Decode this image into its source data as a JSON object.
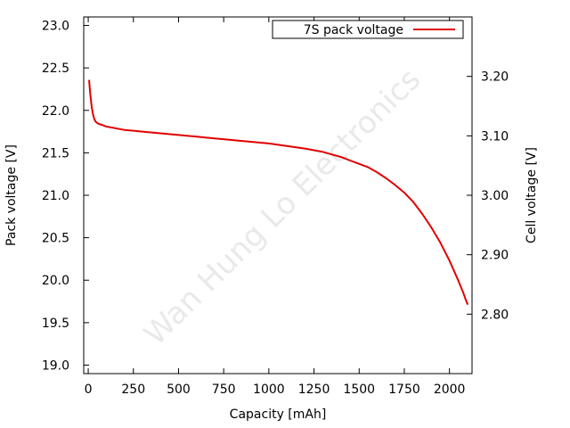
{
  "chart_data": {
    "type": "line",
    "title": "",
    "xlabel": "Capacity [mAh]",
    "ylabel": "Pack voltage [V]",
    "y2label": "Cell voltage [V]",
    "xlim": [
      -25,
      2125
    ],
    "ylim": [
      18.9,
      23.1
    ],
    "x_ticks": [
      0,
      250,
      500,
      750,
      1000,
      1250,
      1500,
      1750,
      2000
    ],
    "y_ticks": [
      19.0,
      19.5,
      20.0,
      20.5,
      21.0,
      21.5,
      22.0,
      22.5,
      23.0
    ],
    "y2_ticks": [
      2.8,
      2.9,
      3.0,
      3.1,
      3.2
    ],
    "y2_scale_cells": 7,
    "grid": false,
    "legend_position": "top-right",
    "watermark": "Wan Hung Lo Electronics",
    "series": [
      {
        "name": "7S pack voltage",
        "color": "#e00000",
        "x": [
          5,
          10,
          15,
          20,
          25,
          30,
          35,
          40,
          50,
          60,
          75,
          100,
          150,
          200,
          250,
          300,
          400,
          500,
          600,
          700,
          800,
          900,
          1000,
          1100,
          1200,
          1250,
          1300,
          1350,
          1400,
          1450,
          1500,
          1550,
          1600,
          1650,
          1700,
          1750,
          1800,
          1850,
          1900,
          1950,
          2000,
          2050,
          2075,
          2090,
          2100
        ],
        "y": [
          22.35,
          22.22,
          22.12,
          22.03,
          21.97,
          21.92,
          21.89,
          21.87,
          21.85,
          21.84,
          21.83,
          21.81,
          21.79,
          21.77,
          21.76,
          21.75,
          21.73,
          21.71,
          21.69,
          21.67,
          21.65,
          21.63,
          21.61,
          21.58,
          21.55,
          21.53,
          21.51,
          21.48,
          21.45,
          21.41,
          21.37,
          21.33,
          21.27,
          21.2,
          21.12,
          21.03,
          20.92,
          20.78,
          20.62,
          20.44,
          20.23,
          19.99,
          19.86,
          19.77,
          19.72
        ]
      }
    ]
  }
}
